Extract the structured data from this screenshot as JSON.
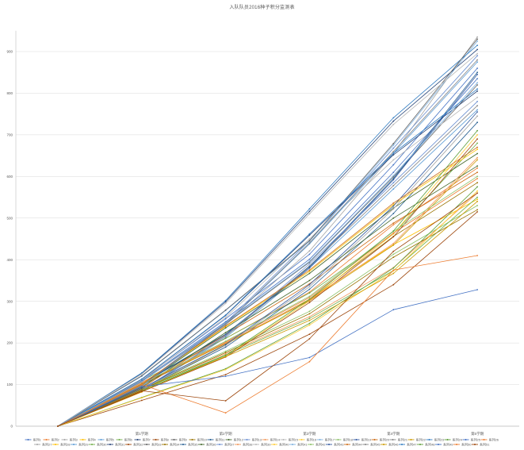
{
  "chart": {
    "title": "入队队员2016种子积分监测表",
    "colors": {
      "title": "#595959",
      "grid": "#d9d9d9",
      "axis": "#bfbfbf",
      "tick_label": "#595959"
    }
  },
  "chart_data": {
    "type": "line",
    "categories": [
      "",
      "第1学期",
      "第2学期",
      "第3学期",
      "第4学期",
      "第5学期"
    ],
    "y_ticks": [
      0,
      100,
      200,
      300,
      400,
      500,
      600,
      700,
      800,
      900
    ],
    "ylim": [
      0,
      950
    ],
    "grid": true,
    "legend_position": "bottom",
    "palette": [
      "#4472c4",
      "#ed7d31",
      "#a5a5a5",
      "#ffc000",
      "#5b9bd5",
      "#70ad47",
      "#264478",
      "#9e480e",
      "#636363",
      "#997300",
      "#255e91",
      "#43682b",
      "#698ed0",
      "#f1975a",
      "#b7b7b7",
      "#ffcd33",
      "#7cafdd",
      "#8cc168",
      "#335aa1",
      "#cb6a15",
      "#848484",
      "#cc9a00",
      "#327dc2",
      "#5d9e38"
    ],
    "series": [
      {
        "name": "系列1",
        "values": [
          0,
          112,
          258,
          413,
          628,
          860
        ]
      },
      {
        "name": "系列2",
        "values": [
          0,
          105,
          211,
          322,
          484,
          620
        ]
      },
      {
        "name": "系列3",
        "values": [
          0,
          112,
          243,
          421,
          655,
          935
        ]
      },
      {
        "name": "系列4",
        "values": [
          0,
          82,
          196,
          305,
          436,
          545
        ]
      },
      {
        "name": "系列5",
        "values": [
          0,
          84,
          213,
          380,
          570,
          760
        ]
      },
      {
        "name": "系列6",
        "values": [
          0,
          109,
          211,
          320,
          462,
          680
        ]
      },
      {
        "name": "系列7",
        "values": [
          0,
          127,
          299,
          516,
          733,
          905
        ]
      },
      {
        "name": "系列8",
        "values": [
          0,
          62,
          124,
          221,
          340,
          515
        ]
      },
      {
        "name": "系列9",
        "values": [
          0,
          107,
          246,
          394,
          599,
          820
        ]
      },
      {
        "name": "系列10",
        "values": [
          0,
          99,
          199,
          304,
          456,
          585
        ]
      },
      {
        "name": "系列11",
        "values": [
          0,
          88,
          190,
          329,
          511,
          730
        ]
      },
      {
        "name": "系列12",
        "values": [
          0,
          98,
          236,
          367,
          524,
          655
        ]
      },
      {
        "name": "系列13",
        "values": [
          0,
          98,
          249,
          445,
          668,
          890
        ]
      },
      {
        "name": "系列14",
        "values": [
          0,
          90,
          174,
          263,
          381,
          560
        ]
      },
      {
        "name": "系列15",
        "values": [
          0,
          111,
          261,
          450,
          640,
          790
        ]
      },
      {
        "name": "系列16",
        "values": [
          0,
          84,
          168,
          301,
          462,
          700
        ]
      },
      {
        "name": "系列17",
        "values": [
          0,
          120,
          278,
          444,
          675,
          925
        ]
      },
      {
        "name": "系列18",
        "values": [
          0,
          90,
          180,
          276,
          413,
          530
        ]
      },
      {
        "name": "系列19",
        "values": [
          0,
          101,
          220,
          380,
          592,
          845
        ]
      },
      {
        "name": "系列20",
        "values": [
          0,
          92,
          220,
          342,
          488,
          610
        ]
      },
      {
        "name": "系列21",
        "values": [
          0,
          85,
          216,
          385,
          578,
          770
        ]
      },
      {
        "name": "系列22",
        "values": [
          0,
          102,
          198,
          301,
          435,
          640
        ]
      },
      {
        "name": "系列23",
        "values": [
          0,
          128,
          302,
          522,
          741,
          915
        ]
      },
      {
        "name": "系列24",
        "values": [
          0,
          69,
          138,
          247,
          380,
          575
        ]
      },
      {
        "name": "系列25",
        "values": [
          0,
          109,
          251,
          401,
          610,
          835
        ]
      },
      {
        "name": "系列26",
        "values": [
          0,
          101,
          202,
          309,
          464,
          595
        ]
      },
      {
        "name": "系列27",
        "values": [
          0,
          89,
          194,
          335,
          522,
          745
        ]
      },
      {
        "name": "系列28",
        "values": [
          0,
          100,
          239,
          372,
          532,
          665
        ]
      },
      {
        "name": "系列29",
        "values": [
          0,
          96,
          245,
          438,
          656,
          875
        ]
      },
      {
        "name": "系列30",
        "values": [
          0,
          88,
          171,
          259,
          374,
          550
        ]
      },
      {
        "name": "系列31",
        "values": [
          0,
          113,
          266,
          459,
          652,
          805
        ]
      },
      {
        "name": "系列32",
        "values": [
          0,
          83,
          166,
          297,
          455,
          690
        ]
      },
      {
        "name": "系列33",
        "values": [
          0,
          121,
          279,
          446,
          679,
          930
        ]
      },
      {
        "name": "系列34",
        "values": [
          0,
          88,
          177,
          270,
          406,
          520
        ]
      },
      {
        "name": "系列35",
        "values": [
          0,
          102,
          221,
          383,
          595,
          850
        ]
      },
      {
        "name": "系列36",
        "values": [
          0,
          94,
          225,
          350,
          500,
          625
        ]
      },
      {
        "name": "系列37",
        "values": [
          0,
          86,
          218,
          390,
          585,
          780
        ]
      },
      {
        "name": "系列38",
        "values": [
          0,
          103,
          200,
          303,
          439,
          645
        ]
      },
      {
        "name": "系列39",
        "values": [
          0,
          125,
          295,
          510,
          725,
          895
        ]
      },
      {
        "name": "系列40",
        "values": [
          0,
          68,
          136,
          243,
          373,
          565
        ]
      },
      {
        "name": "系列41",
        "values": [
          0,
          107,
          248,
          396,
          602,
          825
        ]
      },
      {
        "name": "系列42",
        "values": [
          0,
          102,
          204,
          312,
          468,
          600
        ]
      },
      {
        "name": "系列43",
        "values": [
          0,
          91,
          196,
          340,
          529,
          755
        ]
      },
      {
        "name": "系列44",
        "values": [
          0,
          101,
          241,
          375,
          536,
          670
        ]
      },
      {
        "name": "系列45",
        "values": [
          0,
          97,
          246,
          440,
          660,
          880
        ]
      },
      {
        "name": "系列46",
        "values": [
          0,
          86,
          167,
          254,
          367,
          540
        ]
      },
      {
        "name": "系列47",
        "values": [
          0,
          113,
          267,
          462,
          656,
          810
        ]
      },
      {
        "name": "系列48",
        "values": [
          0,
          85,
          170,
          305,
          469,
          710
        ]
      },
      {
        "name": "系列49",
        "color": "#4472c4",
        "values": [
          0,
          95,
          120,
          165,
          280,
          328
        ]
      },
      {
        "name": "系列50",
        "color": "#ed7d31",
        "values": [
          0,
          100,
          32,
          155,
          375,
          410
        ]
      },
      {
        "name": "系列51",
        "color": "#9e480e",
        "values": [
          0,
          85,
          61,
          210,
          420,
          560
        ]
      }
    ]
  }
}
